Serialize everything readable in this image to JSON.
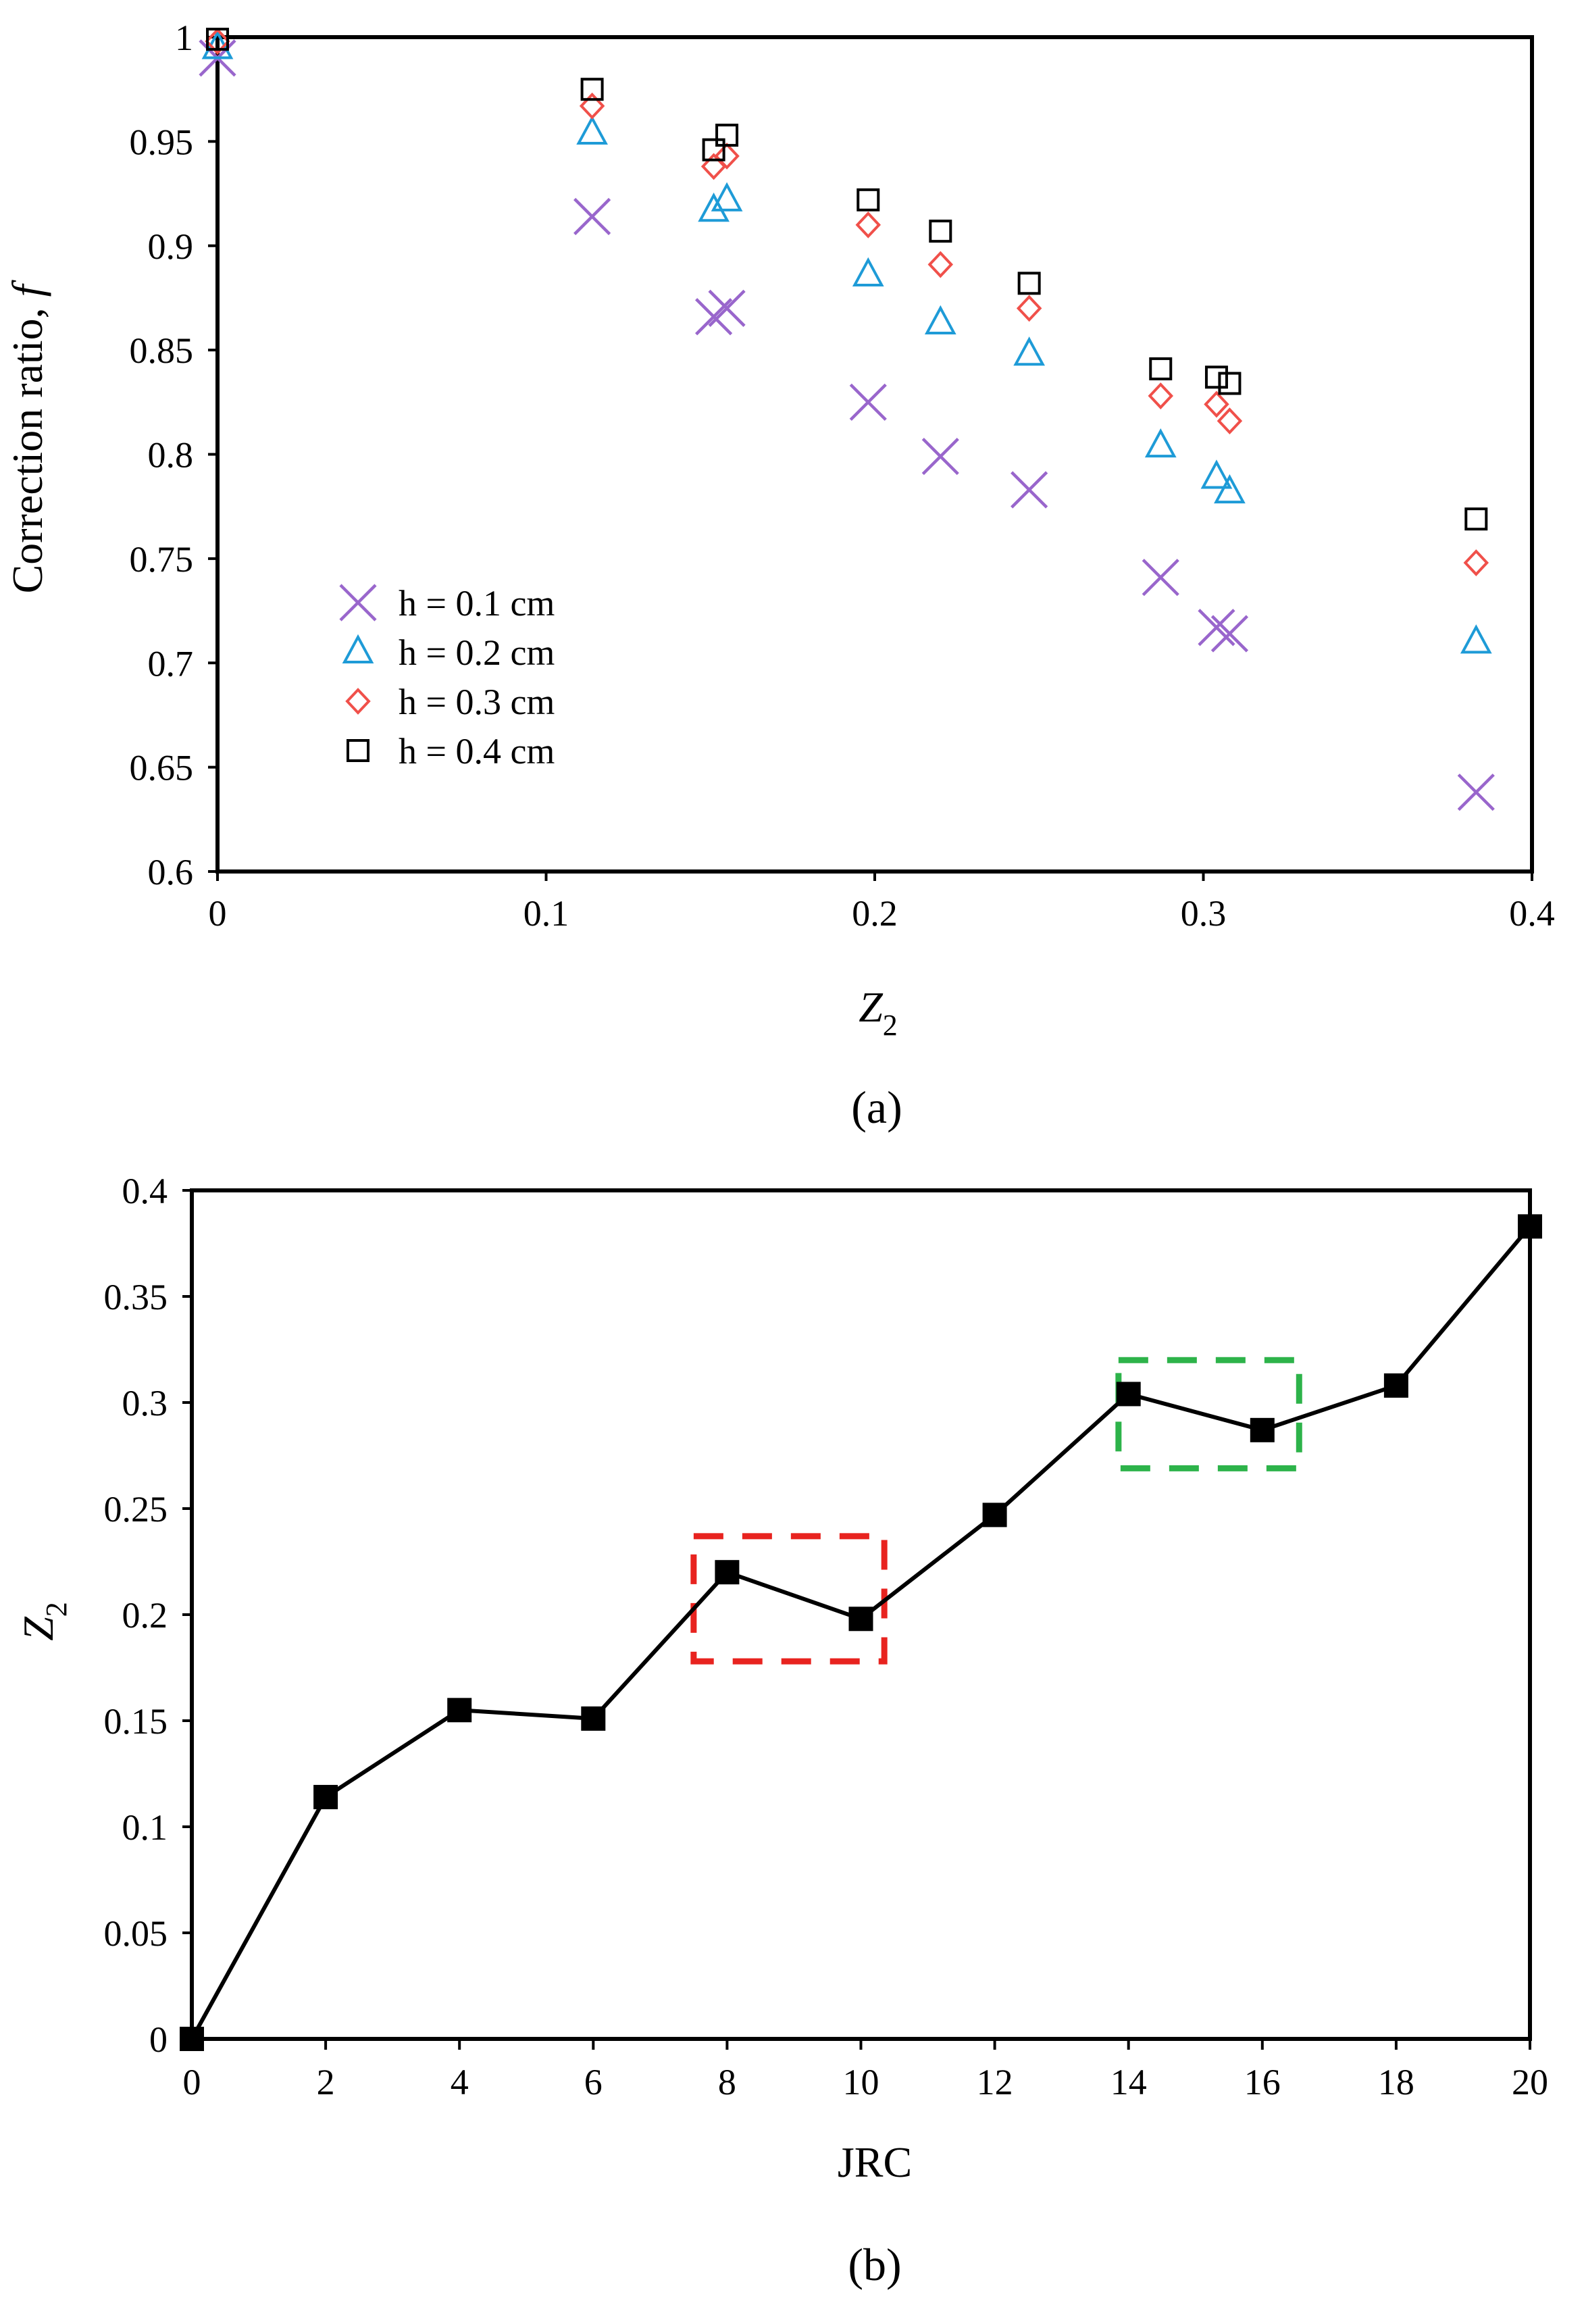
{
  "chart_data": [
    {
      "type": "scatter",
      "panel_label": "(a)",
      "xlabel": "Z",
      "xlabel_sub": "2",
      "ylabel": "Correction ratio, ",
      "ylabel_var": "f",
      "xlim": [
        0,
        0.4
      ],
      "ylim": [
        0.6,
        1.0
      ],
      "xticks": [
        0,
        0.1,
        0.2,
        0.3,
        0.4
      ],
      "xtick_labels": [
        "0",
        "0.1",
        "0.2",
        "0.3",
        "0.4"
      ],
      "yticks": [
        0.6,
        0.65,
        0.7,
        0.75,
        0.8,
        0.85,
        0.9,
        0.95,
        1.0
      ],
      "ytick_labels": [
        "0.6",
        "0.65",
        "0.7",
        "0.75",
        "0.8",
        "0.85",
        "0.9",
        "0.95",
        "1"
      ],
      "legend_position": "lower-left",
      "x": [
        0,
        0.114,
        0.151,
        0.155,
        0.198,
        0.22,
        0.247,
        0.287,
        0.304,
        0.308,
        0.383
      ],
      "series": [
        {
          "name": "h = 0.1 cm",
          "marker": "x",
          "color": "#9966CC",
          "values": [
            0.99,
            0.914,
            0.866,
            0.87,
            0.825,
            0.799,
            0.783,
            0.741,
            0.717,
            0.714,
            0.638
          ]
        },
        {
          "name": "h = 0.2 cm",
          "marker": "triangle",
          "color": "#1E9BD7",
          "values": [
            0.995,
            0.954,
            0.917,
            0.922,
            0.886,
            0.863,
            0.848,
            0.804,
            0.789,
            0.782,
            0.71
          ]
        },
        {
          "name": "h = 0.3 cm",
          "marker": "diamond",
          "color": "#F0504A",
          "values": [
            0.998,
            0.967,
            0.938,
            0.943,
            0.91,
            0.891,
            0.87,
            0.828,
            0.824,
            0.816,
            0.748
          ]
        },
        {
          "name": "h = 0.4 cm",
          "marker": "square",
          "color": "#000000",
          "values": [
            0.999,
            0.975,
            0.946,
            0.953,
            0.922,
            0.907,
            0.882,
            0.841,
            0.837,
            0.834,
            0.769
          ]
        }
      ]
    },
    {
      "type": "line",
      "panel_label": "(b)",
      "xlabel": "JRC",
      "ylabel": "Z",
      "ylabel_sub": "2",
      "xlim": [
        0,
        20
      ],
      "ylim": [
        0,
        0.4
      ],
      "xticks": [
        0,
        2,
        4,
        6,
        8,
        10,
        12,
        14,
        16,
        18,
        20
      ],
      "xtick_labels": [
        "0",
        "2",
        "4",
        "6",
        "8",
        "10",
        "12",
        "14",
        "16",
        "18",
        "20"
      ],
      "yticks": [
        0,
        0.05,
        0.1,
        0.15,
        0.2,
        0.25,
        0.3,
        0.35,
        0.4
      ],
      "ytick_labels": [
        "0",
        "0.05",
        "0.1",
        "0.15",
        "0.2",
        "0.25",
        "0.3",
        "0.35",
        "0.4"
      ],
      "x": [
        0,
        2,
        4,
        6,
        8,
        10,
        12,
        14,
        16,
        18,
        20
      ],
      "series": [
        {
          "name": "Z2",
          "marker": "square",
          "color": "#000000",
          "values": [
            0,
            0.114,
            0.155,
            0.151,
            0.22,
            0.198,
            0.247,
            0.304,
            0.287,
            0.308,
            0.383
          ]
        }
      ],
      "highlights": [
        {
          "color": "#E8231F",
          "style": "dashed",
          "x_range": [
            7.5,
            10.35
          ],
          "y_range": [
            0.178,
            0.237
          ]
        },
        {
          "color": "#2DB34A",
          "style": "dashed",
          "x_range": [
            13.85,
            16.55
          ],
          "y_range": [
            0.269,
            0.32
          ]
        }
      ]
    }
  ]
}
